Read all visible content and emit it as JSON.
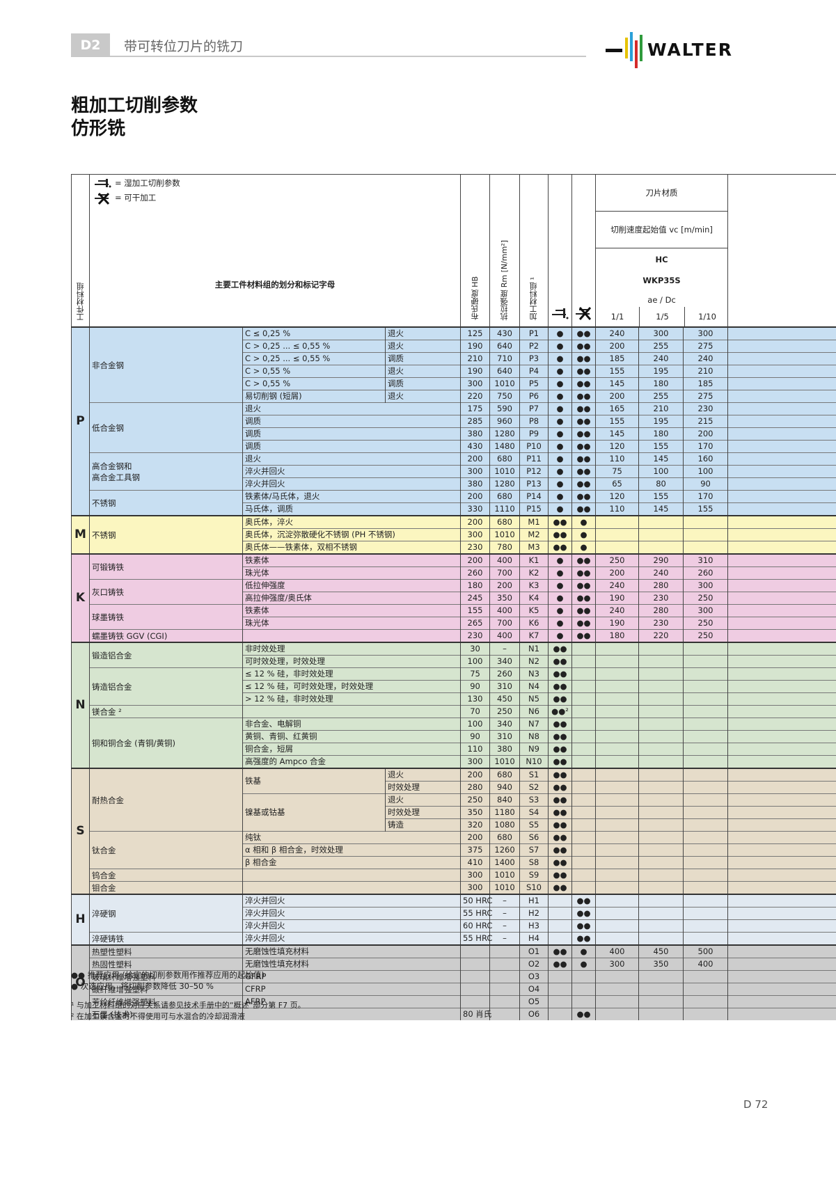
{
  "header": {
    "tag": "D2",
    "section": "带可转位刀片的铣刀",
    "logo_text": "WALTER"
  },
  "title": {
    "line1": "粗加工切削参数",
    "line2": "仿形铣"
  },
  "table_header": {
    "legend_wet": "= 湿加工切削参数",
    "legend_dry": "= 可干加工",
    "workpiece_group": "工件材料组",
    "main_group": "主要工件材料组的划分和标记字母",
    "hardness": "布氏硬度 HB",
    "tensile": "抗拉强度 Rm [N/mm²]",
    "machining_group": "加工材料组 ¹",
    "insert_material": "刀片材质",
    "cutting_speed": "切削速度起始值 vc [m/min]",
    "hc": "HC",
    "grade": "WKP35S",
    "ae_dc": "ae / Dc",
    "ratios": [
      "1/1",
      "1/5",
      "1/10"
    ]
  },
  "rows": [
    {
      "g": "P",
      "m": "非合金钢",
      "c1": "C ≤ 0,25 %",
      "c2": "退火",
      "hb": "125",
      "rm": "430",
      "code": "P1",
      "w": "●",
      "d": "●●",
      "v": [
        "240",
        "300",
        "300"
      ]
    },
    {
      "g": "P",
      "m": "",
      "c1": "C > 0,25 ... ≤ 0,55 %",
      "c2": "退火",
      "hb": "190",
      "rm": "640",
      "code": "P2",
      "w": "●",
      "d": "●●",
      "v": [
        "200",
        "255",
        "275"
      ]
    },
    {
      "g": "P",
      "m": "",
      "c1": "C > 0,25 ... ≤ 0,55 %",
      "c2": "调质",
      "hb": "210",
      "rm": "710",
      "code": "P3",
      "w": "●",
      "d": "●●",
      "v": [
        "185",
        "240",
        "240"
      ]
    },
    {
      "g": "P",
      "m": "",
      "c1": "C > 0,55 %",
      "c2": "退火",
      "hb": "190",
      "rm": "640",
      "code": "P4",
      "w": "●",
      "d": "●●",
      "v": [
        "155",
        "195",
        "210"
      ]
    },
    {
      "g": "P",
      "m": "",
      "c1": "C > 0,55 %",
      "c2": "调质",
      "hb": "300",
      "rm": "1010",
      "code": "P5",
      "w": "●",
      "d": "●●",
      "v": [
        "145",
        "180",
        "185"
      ]
    },
    {
      "g": "P",
      "m": "",
      "c1": "易切削钢 (短屑)",
      "c2": "退火",
      "hb": "220",
      "rm": "750",
      "code": "P6",
      "w": "●",
      "d": "●●",
      "v": [
        "200",
        "255",
        "275"
      ]
    },
    {
      "g": "P",
      "m": "低合金钢",
      "c1": "退火",
      "c2": "",
      "hb": "175",
      "rm": "590",
      "code": "P7",
      "w": "●",
      "d": "●●",
      "v": [
        "165",
        "210",
        "230"
      ]
    },
    {
      "g": "P",
      "m": "",
      "c1": "调质",
      "c2": "",
      "hb": "285",
      "rm": "960",
      "code": "P8",
      "w": "●",
      "d": "●●",
      "v": [
        "155",
        "195",
        "215"
      ]
    },
    {
      "g": "P",
      "m": "",
      "c1": "调质",
      "c2": "",
      "hb": "380",
      "rm": "1280",
      "code": "P9",
      "w": "●",
      "d": "●●",
      "v": [
        "145",
        "180",
        "200"
      ]
    },
    {
      "g": "P",
      "m": "",
      "c1": "调质",
      "c2": "",
      "hb": "430",
      "rm": "1480",
      "code": "P10",
      "w": "●",
      "d": "●●",
      "v": [
        "120",
        "155",
        "170"
      ]
    },
    {
      "g": "P",
      "m": "高合金钢和\n高合金工具钢",
      "c1": "退火",
      "c2": "",
      "hb": "200",
      "rm": "680",
      "code": "P11",
      "w": "●",
      "d": "●●",
      "v": [
        "110",
        "145",
        "160"
      ]
    },
    {
      "g": "P",
      "m": "",
      "c1": "淬火并回火",
      "c2": "",
      "hb": "300",
      "rm": "1010",
      "code": "P12",
      "w": "●",
      "d": "●●",
      "v": [
        "75",
        "100",
        "100"
      ]
    },
    {
      "g": "P",
      "m": "",
      "c1": "淬火并回火",
      "c2": "",
      "hb": "380",
      "rm": "1280",
      "code": "P13",
      "w": "●",
      "d": "●●",
      "v": [
        "65",
        "80",
        "90"
      ]
    },
    {
      "g": "P",
      "m": "不锈钢",
      "c1": "铁素体/马氏体，退火",
      "c2": "",
      "hb": "200",
      "rm": "680",
      "code": "P14",
      "w": "●",
      "d": "●●",
      "v": [
        "120",
        "155",
        "170"
      ]
    },
    {
      "g": "P",
      "m": "",
      "c1": "马氏体，调质",
      "c2": "",
      "hb": "330",
      "rm": "1110",
      "code": "P15",
      "w": "●",
      "d": "●●",
      "v": [
        "110",
        "145",
        "155"
      ]
    },
    {
      "g": "M",
      "m": "不锈钢",
      "c1": "奥氏体，淬火",
      "c2": "",
      "hb": "200",
      "rm": "680",
      "code": "M1",
      "w": "●●",
      "d": "●",
      "v": [
        "",
        "",
        ""
      ]
    },
    {
      "g": "M",
      "m": "",
      "c1": "奥氏体，沉淀弥散硬化不锈钢 (PH 不锈钢)",
      "c2": "",
      "hb": "300",
      "rm": "1010",
      "code": "M2",
      "w": "●●",
      "d": "●",
      "v": [
        "",
        "",
        ""
      ]
    },
    {
      "g": "M",
      "m": "",
      "c1": "奥氏体——铁素体，双相不锈钢",
      "c2": "",
      "hb": "230",
      "rm": "780",
      "code": "M3",
      "w": "●●",
      "d": "●",
      "v": [
        "",
        "",
        ""
      ]
    },
    {
      "g": "K",
      "m": "可锻铸铁",
      "c1": "铁素体",
      "c2": "",
      "hb": "200",
      "rm": "400",
      "code": "K1",
      "w": "●",
      "d": "●●",
      "v": [
        "250",
        "290",
        "310"
      ]
    },
    {
      "g": "K",
      "m": "",
      "c1": "珠光体",
      "c2": "",
      "hb": "260",
      "rm": "700",
      "code": "K2",
      "w": "●",
      "d": "●●",
      "v": [
        "200",
        "240",
        "260"
      ]
    },
    {
      "g": "K",
      "m": "灰口铸铁",
      "c1": "低拉伸强度",
      "c2": "",
      "hb": "180",
      "rm": "200",
      "code": "K3",
      "w": "●",
      "d": "●●",
      "v": [
        "240",
        "280",
        "300"
      ]
    },
    {
      "g": "K",
      "m": "",
      "c1": "高拉伸强度/奥氏体",
      "c2": "",
      "hb": "245",
      "rm": "350",
      "code": "K4",
      "w": "●",
      "d": "●●",
      "v": [
        "190",
        "230",
        "250"
      ]
    },
    {
      "g": "K",
      "m": "球墨铸铁",
      "c1": "铁素体",
      "c2": "",
      "hb": "155",
      "rm": "400",
      "code": "K5",
      "w": "●",
      "d": "●●",
      "v": [
        "240",
        "280",
        "300"
      ]
    },
    {
      "g": "K",
      "m": "",
      "c1": "珠光体",
      "c2": "",
      "hb": "265",
      "rm": "700",
      "code": "K6",
      "w": "●",
      "d": "●●",
      "v": [
        "190",
        "230",
        "250"
      ]
    },
    {
      "g": "K",
      "m": "蠕墨铸铁 GGV (CGI)",
      "c1": "",
      "c2": "",
      "hb": "230",
      "rm": "400",
      "code": "K7",
      "w": "●",
      "d": "●●",
      "v": [
        "180",
        "220",
        "250"
      ]
    },
    {
      "g": "N",
      "m": "锻造铝合金",
      "c1": "非时效处理",
      "c2": "",
      "hb": "30",
      "rm": "–",
      "code": "N1",
      "w": "●●",
      "d": "",
      "v": [
        "",
        "",
        ""
      ]
    },
    {
      "g": "N",
      "m": "",
      "c1": "可时效处理，时效处理",
      "c2": "",
      "hb": "100",
      "rm": "340",
      "code": "N2",
      "w": "●●",
      "d": "",
      "v": [
        "",
        "",
        ""
      ]
    },
    {
      "g": "N",
      "m": "铸造铝合金",
      "c1": "≤ 12 % 硅，非时效处理",
      "c2": "",
      "hb": "75",
      "rm": "260",
      "code": "N3",
      "w": "●●",
      "d": "",
      "v": [
        "",
        "",
        ""
      ]
    },
    {
      "g": "N",
      "m": "",
      "c1": "≤ 12 % 硅，可时效处理，时效处理",
      "c2": "",
      "hb": "90",
      "rm": "310",
      "code": "N4",
      "w": "●●",
      "d": "",
      "v": [
        "",
        "",
        ""
      ]
    },
    {
      "g": "N",
      "m": "",
      "c1": "> 12 % 硅，非时效处理",
      "c2": "",
      "hb": "130",
      "rm": "450",
      "code": "N5",
      "w": "●●",
      "d": "",
      "v": [
        "",
        "",
        ""
      ]
    },
    {
      "g": "N",
      "m": "镁合金 ²",
      "c1": "",
      "c2": "",
      "hb": "70",
      "rm": "250",
      "code": "N6",
      "w": "●●²",
      "d": "",
      "v": [
        "",
        "",
        ""
      ]
    },
    {
      "g": "N",
      "m": "铜和铜合金 (青铜/黄铜)",
      "c1": "非合金、电解铜",
      "c2": "",
      "hb": "100",
      "rm": "340",
      "code": "N7",
      "w": "●●",
      "d": "",
      "v": [
        "",
        "",
        ""
      ]
    },
    {
      "g": "N",
      "m": "",
      "c1": "黄铜、青铜、红黄铜",
      "c2": "",
      "hb": "90",
      "rm": "310",
      "code": "N8",
      "w": "●●",
      "d": "",
      "v": [
        "",
        "",
        ""
      ]
    },
    {
      "g": "N",
      "m": "",
      "c1": "铜合金，短屑",
      "c2": "",
      "hb": "110",
      "rm": "380",
      "code": "N9",
      "w": "●●",
      "d": "",
      "v": [
        "",
        "",
        ""
      ]
    },
    {
      "g": "N",
      "m": "",
      "c1": "高强度的 Ampco 合金",
      "c2": "",
      "hb": "300",
      "rm": "1010",
      "code": "N10",
      "w": "●●",
      "d": "",
      "v": [
        "",
        "",
        ""
      ]
    },
    {
      "g": "S",
      "m": "耐热合金",
      "c1": "铁基",
      "c2": "退火",
      "hb": "200",
      "rm": "680",
      "code": "S1",
      "w": "●●",
      "d": "",
      "v": [
        "",
        "",
        ""
      ]
    },
    {
      "g": "S",
      "m": "",
      "c1": "",
      "c2": "时效处理",
      "hb": "280",
      "rm": "940",
      "code": "S2",
      "w": "●●",
      "d": "",
      "v": [
        "",
        "",
        ""
      ]
    },
    {
      "g": "S",
      "m": "",
      "c1": "镍基或钴基",
      "c2": "退火",
      "hb": "250",
      "rm": "840",
      "code": "S3",
      "w": "●●",
      "d": "",
      "v": [
        "",
        "",
        ""
      ]
    },
    {
      "g": "S",
      "m": "",
      "c1": "",
      "c2": "时效处理",
      "hb": "350",
      "rm": "1180",
      "code": "S4",
      "w": "●●",
      "d": "",
      "v": [
        "",
        "",
        ""
      ]
    },
    {
      "g": "S",
      "m": "",
      "c1": "",
      "c2": "铸造",
      "hb": "320",
      "rm": "1080",
      "code": "S5",
      "w": "●●",
      "d": "",
      "v": [
        "",
        "",
        ""
      ]
    },
    {
      "g": "S",
      "m": "钛合金",
      "c1": "纯钛",
      "c2": "",
      "hb": "200",
      "rm": "680",
      "code": "S6",
      "w": "●●",
      "d": "",
      "v": [
        "",
        "",
        ""
      ]
    },
    {
      "g": "S",
      "m": "",
      "c1": "α 相和 β 相合金，时效处理",
      "c2": "",
      "hb": "375",
      "rm": "1260",
      "code": "S7",
      "w": "●●",
      "d": "",
      "v": [
        "",
        "",
        ""
      ]
    },
    {
      "g": "S",
      "m": "",
      "c1": "β 相合金",
      "c2": "",
      "hb": "410",
      "rm": "1400",
      "code": "S8",
      "w": "●●",
      "d": "",
      "v": [
        "",
        "",
        ""
      ]
    },
    {
      "g": "S",
      "m": "钨合金",
      "c1": "",
      "c2": "",
      "hb": "300",
      "rm": "1010",
      "code": "S9",
      "w": "●●",
      "d": "",
      "v": [
        "",
        "",
        ""
      ]
    },
    {
      "g": "S",
      "m": "钼合金",
      "c1": "",
      "c2": "",
      "hb": "300",
      "rm": "1010",
      "code": "S10",
      "w": "●●",
      "d": "",
      "v": [
        "",
        "",
        ""
      ]
    },
    {
      "g": "H",
      "m": "淬硬钢",
      "c1": "淬火并回火",
      "c2": "",
      "hb": "50 HRC",
      "rm": "–",
      "code": "H1",
      "w": "",
      "d": "●●",
      "v": [
        "",
        "",
        ""
      ]
    },
    {
      "g": "H",
      "m": "",
      "c1": "淬火并回火",
      "c2": "",
      "hb": "55 HRC",
      "rm": "–",
      "code": "H2",
      "w": "",
      "d": "●●",
      "v": [
        "",
        "",
        ""
      ]
    },
    {
      "g": "H",
      "m": "",
      "c1": "淬火并回火",
      "c2": "",
      "hb": "60 HRC",
      "rm": "–",
      "code": "H3",
      "w": "",
      "d": "●●",
      "v": [
        "",
        "",
        ""
      ]
    },
    {
      "g": "H",
      "m": "淬硬铸铁",
      "c1": "淬火并回火",
      "c2": "",
      "hb": "55 HRC",
      "rm": "–",
      "code": "H4",
      "w": "",
      "d": "●●",
      "v": [
        "",
        "",
        ""
      ]
    },
    {
      "g": "O",
      "m": "热塑性塑料",
      "c1": "无磨蚀性填充材料",
      "c2": "",
      "hb": "",
      "rm": "",
      "code": "O1",
      "w": "●●",
      "d": "●",
      "v": [
        "400",
        "450",
        "500"
      ]
    },
    {
      "g": "O",
      "m": "热固性塑料",
      "c1": "无磨蚀性填充材料",
      "c2": "",
      "hb": "",
      "rm": "",
      "code": "O2",
      "w": "●●",
      "d": "●",
      "v": [
        "300",
        "350",
        "400"
      ]
    },
    {
      "g": "O",
      "m": "玻璃纤维增强塑料",
      "c1": "GFRP",
      "c2": "",
      "hb": "",
      "rm": "",
      "code": "O3",
      "w": "",
      "d": "",
      "v": [
        "",
        "",
        ""
      ]
    },
    {
      "g": "O",
      "m": "碳纤维增强塑料",
      "c1": "CFRP",
      "c2": "",
      "hb": "",
      "rm": "",
      "code": "O4",
      "w": "",
      "d": "",
      "v": [
        "",
        "",
        ""
      ]
    },
    {
      "g": "O",
      "m": "芳纶纤维增强塑料",
      "c1": "AFRP",
      "c2": "",
      "hb": "",
      "rm": "",
      "code": "O5",
      "w": "",
      "d": "",
      "v": [
        "",
        "",
        ""
      ]
    },
    {
      "g": "O",
      "m": "石墨 (技术)",
      "c1": "",
      "c2": "",
      "hb": "80 肖氏",
      "rm": "",
      "code": "O6",
      "w": "",
      "d": "●●",
      "v": [
        "",
        "",
        ""
      ]
    }
  ],
  "footnotes": {
    "rec_primary": "●●  推荐应用 (给定的切削参数用作推荐应用的起始值)",
    "rec_secondary": "●    次选应用，将切削参数降低 30–50 %",
    "note1": "¹ 与加工材料组的对应关系请参见技术手册中的“概述”部分第 F7 页。",
    "note2": "² 在加工镁合金时不得使用可与水混合的冷却润滑液"
  },
  "page_number": "D 72"
}
